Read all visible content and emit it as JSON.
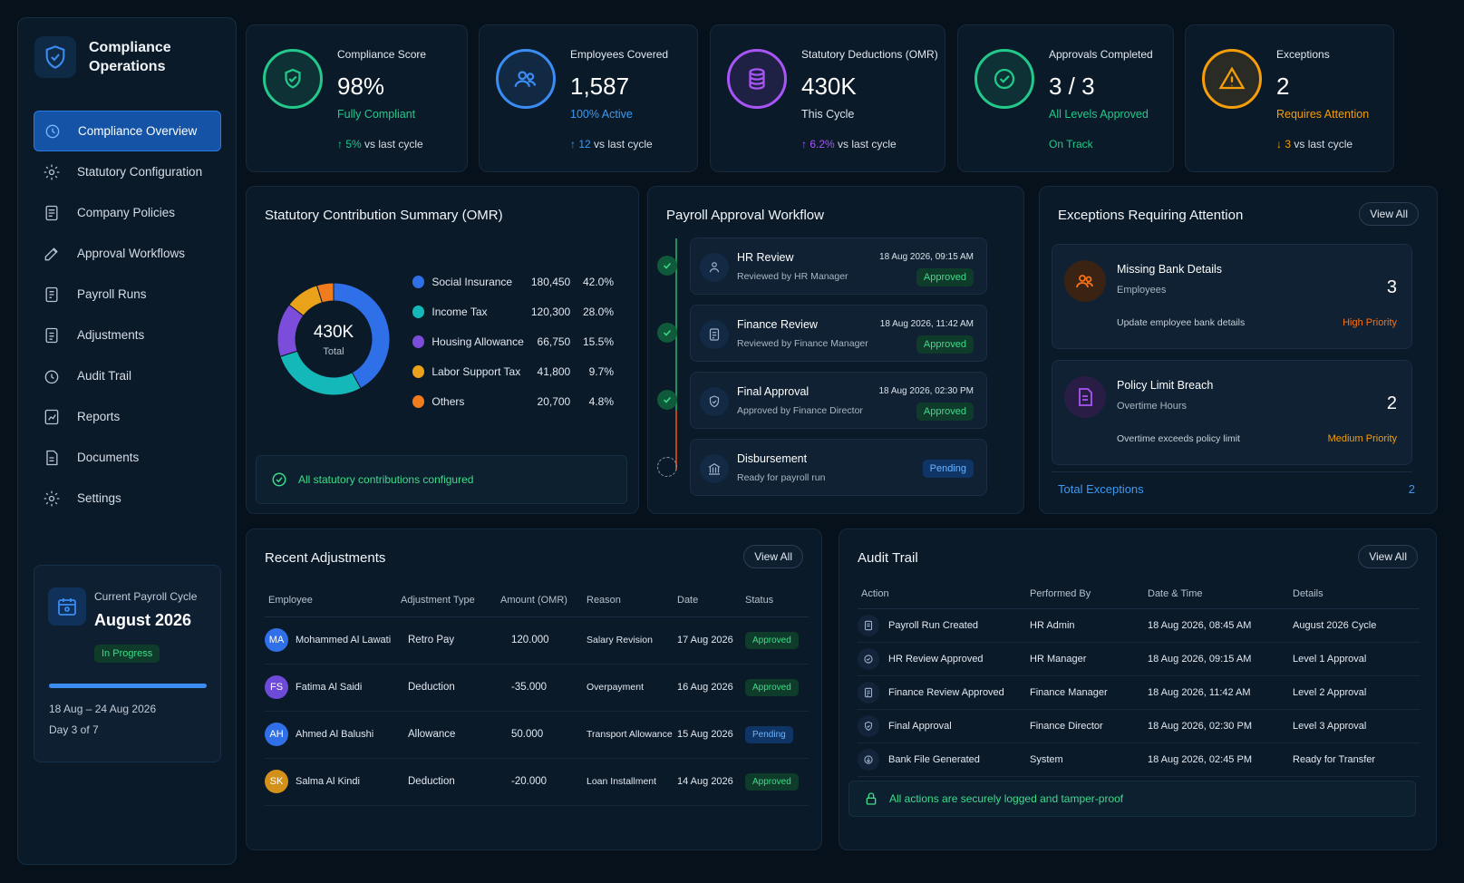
{
  "brand": {
    "title": "Compliance Operations"
  },
  "nav": [
    {
      "label": "Compliance Overview",
      "icon": "compliance-icon",
      "active": true
    },
    {
      "label": "Statutory Configuration",
      "icon": "gear-icon"
    },
    {
      "label": "Company Policies",
      "icon": "document-icon"
    },
    {
      "label": "Approval Workflows",
      "icon": "edit-check-icon"
    },
    {
      "label": "Payroll Runs",
      "icon": "payroll-icon"
    },
    {
      "label": "Adjustments",
      "icon": "adjustments-icon"
    },
    {
      "label": "Audit Trail",
      "icon": "clock-icon"
    },
    {
      "label": "Reports",
      "icon": "chart-icon"
    },
    {
      "label": "Documents",
      "icon": "file-icon"
    },
    {
      "label": "Settings",
      "icon": "gear-icon"
    }
  ],
  "cycle": {
    "label": "Current Payroll Cycle",
    "title": "August 2026",
    "status": "In Progress",
    "progress": 1.0,
    "range": "18 Aug – 24 Aug 2026",
    "day": "Day 3 of 7"
  },
  "kpis": [
    {
      "title": "Compliance Score",
      "value": "98%",
      "sub": "Fully Compliant",
      "trend_value": "5%",
      "trend_text": "vs last cycle",
      "color": "#22c98a"
    },
    {
      "title": "Employees Covered",
      "value": "1,587",
      "sub": "100% Active",
      "trend_value": "12",
      "trend_text": "vs last cycle",
      "color": "#3b8cf3"
    },
    {
      "title": "Statutory Deductions (OMR)",
      "value": "430K",
      "sub": "This Cycle",
      "trend_value": "6.2%",
      "trend_text": "vs last cycle",
      "color": "#a855f7"
    },
    {
      "title": "Approvals Completed",
      "value": "3 / 3",
      "sub": "All Levels Approved",
      "trend_value": "",
      "trend_text": "On Track",
      "color": "#22c98a"
    },
    {
      "title": "Exceptions",
      "value": "2",
      "sub": "Requires Attention",
      "trend_value": "3",
      "trend_text": "vs last cycle",
      "color": "#f59e0b"
    }
  ],
  "summary": {
    "title": "Statutory Contribution Summary (OMR)",
    "center_value": "430K",
    "center_label": "Total",
    "configured": "All statutory contributions configured"
  },
  "chart_data": {
    "type": "pie",
    "title": "Statutory Contribution Summary (OMR)",
    "categories": [
      "Social Insurance",
      "Income Tax",
      "Housing Allowance",
      "Labor Support Tax",
      "Others"
    ],
    "values": [
      180450,
      120300,
      66750,
      41800,
      20700
    ],
    "percents": [
      "42.0%",
      "28.0%",
      "15.5%",
      "9.7%",
      "4.8%"
    ],
    "values_text": [
      "180,450",
      "120,300",
      "66,750",
      "41,800",
      "20,700"
    ],
    "colors": [
      "#2f6fe8",
      "#14b8b8",
      "#7c4ddb",
      "#eaa21b",
      "#f07c1e"
    ],
    "legend": "right"
  },
  "workflow": {
    "title": "Payroll Approval Workflow",
    "steps": [
      {
        "name": "HR Review",
        "by": "Reviewed by HR Manager",
        "time": "18 Aug 2026, 09:15 AM",
        "status": "Approved"
      },
      {
        "name": "Finance Review",
        "by": "Reviewed by Finance Manager",
        "time": "18 Aug 2026, 11:42 AM",
        "status": "Approved"
      },
      {
        "name": "Final Approval",
        "by": "Approved by Finance Director",
        "time": "18 Aug 2026, 02:30 PM",
        "status": "Approved"
      },
      {
        "name": "Disbursement",
        "by": "Ready for payroll run",
        "time": "",
        "status": "Pending"
      }
    ]
  },
  "exceptions": {
    "title": "Exceptions Requiring Attention",
    "view_all": "View All",
    "items": [
      {
        "title": "Missing Bank Details",
        "sub": "Employees",
        "count": "3",
        "desc": "Update employee bank details",
        "priority": "High Priority",
        "priority_color": "#f97316"
      },
      {
        "title": "Policy Limit Breach",
        "sub": "Overtime Hours",
        "count": "2",
        "desc": "Overtime exceeds policy limit",
        "priority": "Medium Priority",
        "priority_color": "#f59e0b"
      }
    ],
    "total_label": "Total Exceptions",
    "total_value": "2"
  },
  "adjustments": {
    "title": "Recent Adjustments",
    "view_all": "View All",
    "columns": [
      "Employee",
      "Adjustment Type",
      "Amount (OMR)",
      "Reason",
      "Date",
      "Status"
    ],
    "rows": [
      {
        "initials": "MA",
        "name": "Mohammed Al Lawati",
        "type": "Retro Pay",
        "amount": "120.000",
        "reason": "Salary Revision",
        "date": "17 Aug 2026",
        "status": "Approved",
        "color": "#2f6fe8"
      },
      {
        "initials": "FS",
        "name": "Fatima Al Saidi",
        "type": "Deduction",
        "amount": "-35.000",
        "reason": "Overpayment",
        "date": "16 Aug 2026",
        "status": "Approved",
        "color": "#6d4bd8"
      },
      {
        "initials": "AH",
        "name": "Ahmed Al Balushi",
        "type": "Allowance",
        "amount": "50.000",
        "reason": "Transport Allowance",
        "date": "15 Aug 2026",
        "status": "Pending",
        "color": "#2f6fe8"
      },
      {
        "initials": "SK",
        "name": "Salma Al Kindi",
        "type": "Deduction",
        "amount": "-20.000",
        "reason": "Loan Installment",
        "date": "14 Aug 2026",
        "status": "Approved",
        "color": "#d4911a"
      }
    ]
  },
  "audit": {
    "title": "Audit Trail",
    "view_all": "View All",
    "columns": [
      "Action",
      "Performed By",
      "Date & Time",
      "Details"
    ],
    "rows": [
      {
        "action": "Payroll Run Created",
        "by": "HR Admin",
        "time": "18 Aug 2026, 08:45 AM",
        "details": "August 2026 Cycle"
      },
      {
        "action": "HR Review Approved",
        "by": "HR Manager",
        "time": "18 Aug 2026, 09:15 AM",
        "details": "Level 1 Approval"
      },
      {
        "action": "Finance Review Approved",
        "by": "Finance Manager",
        "time": "18 Aug 2026, 11:42 AM",
        "details": "Level 2 Approval"
      },
      {
        "action": "Final Approval",
        "by": "Finance Director",
        "time": "18 Aug 2026, 02:30 PM",
        "details": "Level 3 Approval"
      },
      {
        "action": "Bank File Generated",
        "by": "System",
        "time": "18 Aug 2026, 02:45 PM",
        "details": "Ready for Transfer"
      }
    ],
    "secure": "All actions are securely logged and tamper-proof"
  }
}
